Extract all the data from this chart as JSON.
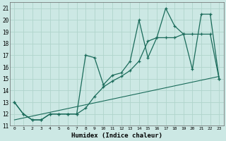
{
  "xlabel": "Humidex (Indice chaleur)",
  "xlim": [
    -0.5,
    23.5
  ],
  "ylim": [
    11,
    21.5
  ],
  "xticks": [
    0,
    1,
    2,
    3,
    4,
    5,
    6,
    7,
    8,
    9,
    10,
    11,
    12,
    13,
    14,
    15,
    16,
    17,
    18,
    19,
    20,
    21,
    22,
    23
  ],
  "yticks": [
    11,
    12,
    13,
    14,
    15,
    16,
    17,
    18,
    19,
    20,
    21
  ],
  "bg_color": "#cce8e4",
  "grid_color": "#b0d4cc",
  "line_color": "#1a6b5a",
  "line1_x": [
    0,
    1,
    2,
    3,
    4,
    5,
    6,
    7,
    8,
    9,
    10,
    11,
    12,
    13,
    14,
    15,
    16,
    17,
    18,
    19,
    20,
    21,
    22,
    23
  ],
  "line1_y": [
    13,
    12,
    11.5,
    11.5,
    12,
    12,
    12,
    12,
    17,
    16.8,
    14.5,
    15.3,
    15.5,
    16.5,
    20.0,
    16.8,
    18.5,
    21,
    19.5,
    18.8,
    15.8,
    20.5,
    20.5,
    15
  ],
  "line2_x": [
    0,
    1,
    2,
    3,
    4,
    5,
    6,
    7,
    8,
    9,
    10,
    11,
    12,
    13,
    14,
    15,
    16,
    17,
    18,
    19,
    20,
    21,
    22,
    23
  ],
  "line2_y": [
    13,
    12,
    11.5,
    11.5,
    12,
    12,
    12,
    12,
    12.5,
    13.5,
    14.3,
    14.8,
    15.2,
    15.7,
    16.5,
    18.2,
    18.5,
    18.5,
    18.5,
    18.8,
    18.8,
    18.8,
    18.8,
    15
  ],
  "line3_x": [
    0,
    23
  ],
  "line3_y": [
    11.5,
    15.2
  ]
}
